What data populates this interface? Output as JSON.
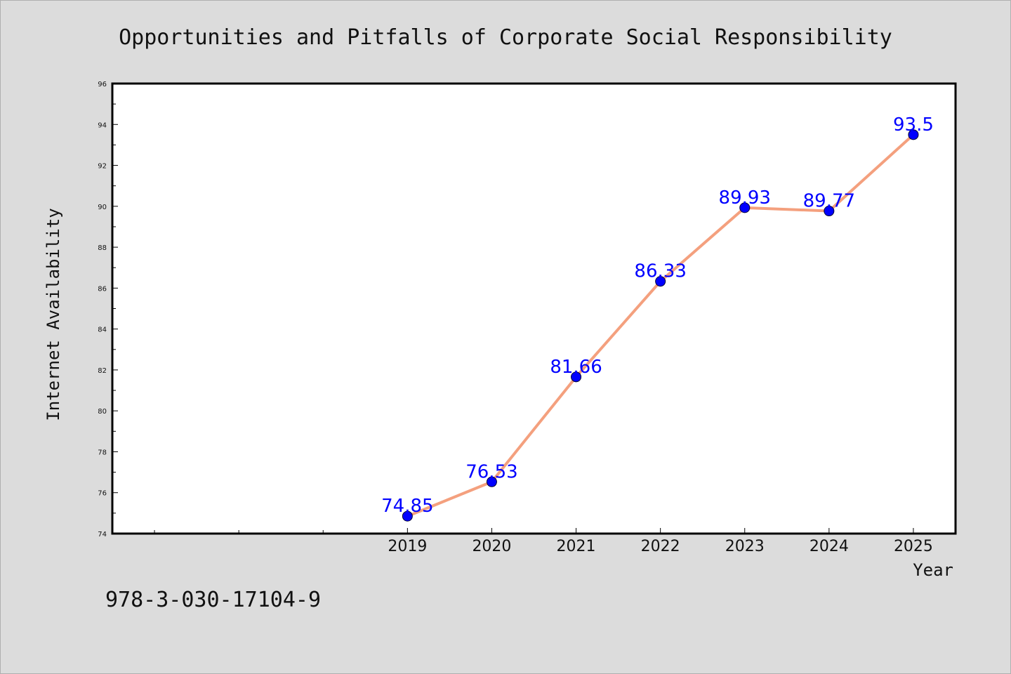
{
  "chart_data": {
    "type": "line",
    "title": "Opportunities and Pitfalls of Corporate Social Responsibility",
    "xlabel": "Year",
    "ylabel": "Internet Availability",
    "x": [
      "2019",
      "2020",
      "2021",
      "2022",
      "2023",
      "2024",
      "2025"
    ],
    "values": [
      74.85,
      76.53,
      81.66,
      86.33,
      89.93,
      89.77,
      93.5
    ],
    "data_labels": [
      "74.85",
      "76.53",
      "81.66",
      "86.33",
      "89.93",
      "89.77",
      "93.5"
    ],
    "ylim": [
      74,
      96
    ],
    "xlim": [
      2015.5,
      2025.5
    ],
    "yticks": [
      74,
      76,
      78,
      80,
      82,
      84,
      86,
      88,
      90,
      92,
      94,
      96
    ],
    "grid": false,
    "line_color": "#f4a07e",
    "marker_color": "#0000ff",
    "label_color": "#0000ff"
  },
  "footer": {
    "isbn": "978-3-030-17104-9"
  },
  "colors": {
    "background": "#dcdcdc",
    "plot_background": "#ffffff"
  }
}
